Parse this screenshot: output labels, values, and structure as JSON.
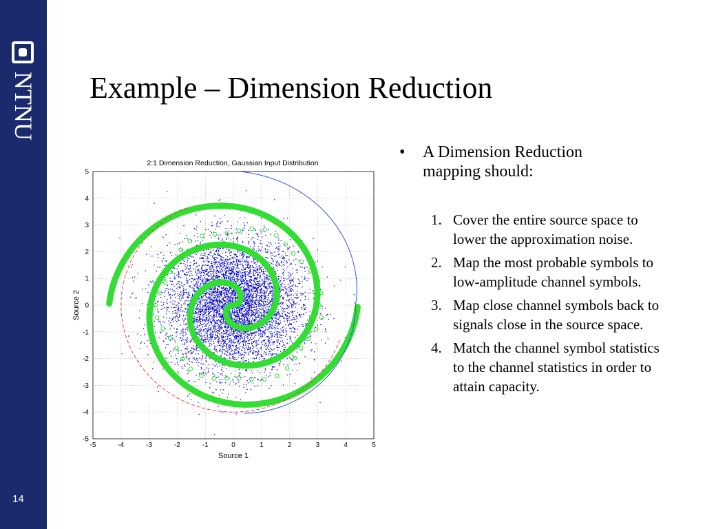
{
  "sidebar": {
    "logo_text": "NTNU",
    "slide_number": "14"
  },
  "slide": {
    "title": "Example – Dimension Reduction",
    "bullet": "A Dimension Reduction mapping should:",
    "list": [
      {
        "num": "1.",
        "text": "Cover the entire source space to lower the approximation noise."
      },
      {
        "num": "2.",
        "text": "Map the most probable symbols to low-amplitude channel symbols."
      },
      {
        "num": "3.",
        "text": "Map close channel symbols back to signals close in the source space."
      },
      {
        "num": "4.",
        "text": "Match the channel symbol statistics to the channel statistics in order to attain capacity."
      }
    ]
  },
  "chart_data": {
    "type": "scatter",
    "title": "2:1 Dimension Reduction, Gaussian Input Distribution",
    "xlabel": "Source 1",
    "ylabel": "Source 2",
    "xlim": [
      -5,
      5
    ],
    "ylim": [
      -5,
      5
    ],
    "xticks": [
      "-5",
      "-4",
      "-3",
      "-2",
      "-1",
      "0",
      "1",
      "2",
      "3",
      "4",
      "5"
    ],
    "yticks": [
      "5",
      "4",
      "3",
      "2",
      "1",
      "0",
      "-1",
      "-2",
      "-3",
      "-4",
      "-5"
    ],
    "grid": true,
    "series": [
      {
        "kind": "gaussian-scatter",
        "std": 1.2,
        "color": "#0000cc"
      },
      {
        "kind": "double-spiral",
        "color": "#33dd33"
      },
      {
        "kind": "circle-dashed",
        "radius": 4,
        "color": "#e04040"
      },
      {
        "kind": "spiral-outer",
        "color": "#3355dd"
      }
    ]
  }
}
